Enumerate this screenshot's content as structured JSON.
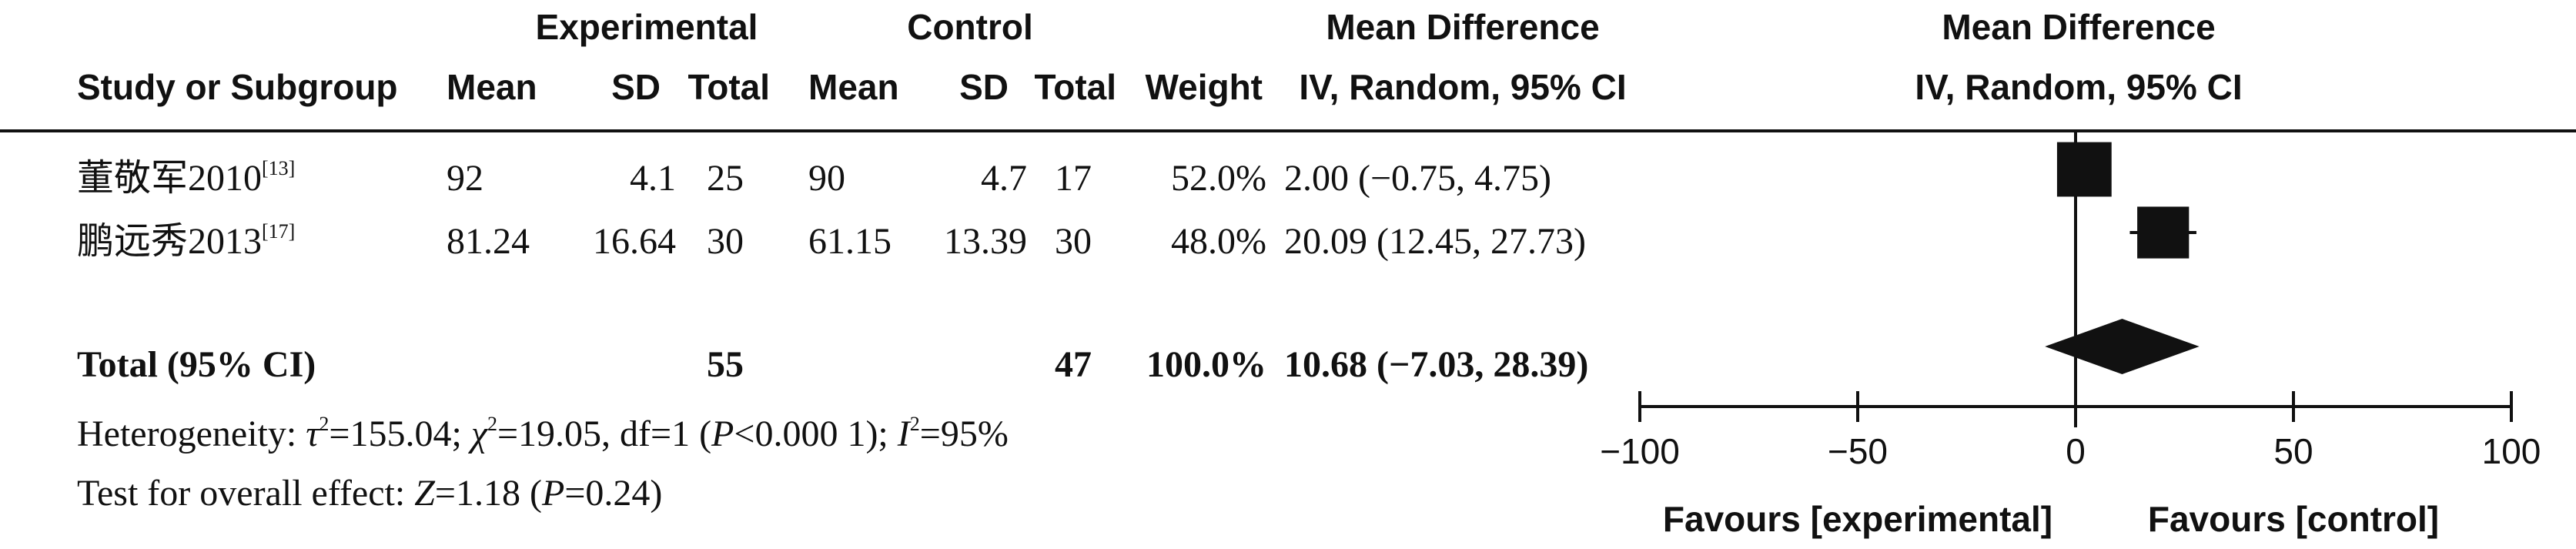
{
  "header": {
    "group1": "Experimental",
    "group2": "Control",
    "effect_group": "Mean Difference",
    "plot_group": "Mean Difference",
    "study_col": "Study or Subgroup",
    "mean1": "Mean",
    "sd1": "SD",
    "total1": "Total",
    "mean2": "Mean",
    "sd2": "SD",
    "total2": "Total",
    "weight": "Weight",
    "effect_method": "IV, Random, 95% CI",
    "plot_method": "IV, Random, 95% CI"
  },
  "studies": [
    {
      "name": "董敬军2010",
      "ref": "[13]",
      "mean1": "92",
      "sd1": "4.1",
      "total1": "25",
      "mean2": "90",
      "sd2": "4.7",
      "total2": "17",
      "weight": "52.0%",
      "ci": "2.00 (−0.75, 4.75)"
    },
    {
      "name": "鹏远秀2013",
      "ref": "[17]",
      "mean1": "81.24",
      "sd1": "16.64",
      "total1": "30",
      "mean2": "61.15",
      "sd2": "13.39",
      "total2": "30",
      "weight": "48.0%",
      "ci": "20.09 (12.45, 27.73)"
    }
  ],
  "total": {
    "label": "Total (95% CI)",
    "total1": "55",
    "total2": "47",
    "weight": "100.0%",
    "ci": "10.68 (−7.03, 28.39)"
  },
  "heterogeneity": {
    "prefix": "Heterogeneity: ",
    "tau_symbol": "τ",
    "tau_value": "=155.04; ",
    "chi_symbol": "χ",
    "chi_value": "=19.05, df=1 (",
    "p_symbol": "P",
    "p_value": "<0.000 1); ",
    "i_symbol": "I",
    "i_value": "=95%",
    "sup": "2"
  },
  "overall": {
    "prefix": "Test for overall effect: ",
    "z_symbol": "Z",
    "z_value": "=1.18 (",
    "p_symbol": "P",
    "p_value": "=0.24)"
  },
  "chart_data": {
    "type": "forest",
    "title": "",
    "xlim": [
      -100,
      100
    ],
    "ticks": [
      -100,
      -50,
      0,
      50,
      100
    ],
    "tick_labels": [
      "−100",
      "−50",
      "0",
      "50",
      "100"
    ],
    "xlabel_left": "Favours [experimental]",
    "xlabel_right": "Favours [control]",
    "studies": [
      {
        "name": "董敬军2010",
        "estimate": 2.0,
        "lower": -0.75,
        "upper": 4.75,
        "weight": 52.0
      },
      {
        "name": "鹏远秀2013",
        "estimate": 20.09,
        "lower": 12.45,
        "upper": 27.73,
        "weight": 48.0
      }
    ],
    "pooled": {
      "estimate": 10.68,
      "lower": -7.03,
      "upper": 28.39
    },
    "colors": {
      "marks": "#111111"
    }
  }
}
